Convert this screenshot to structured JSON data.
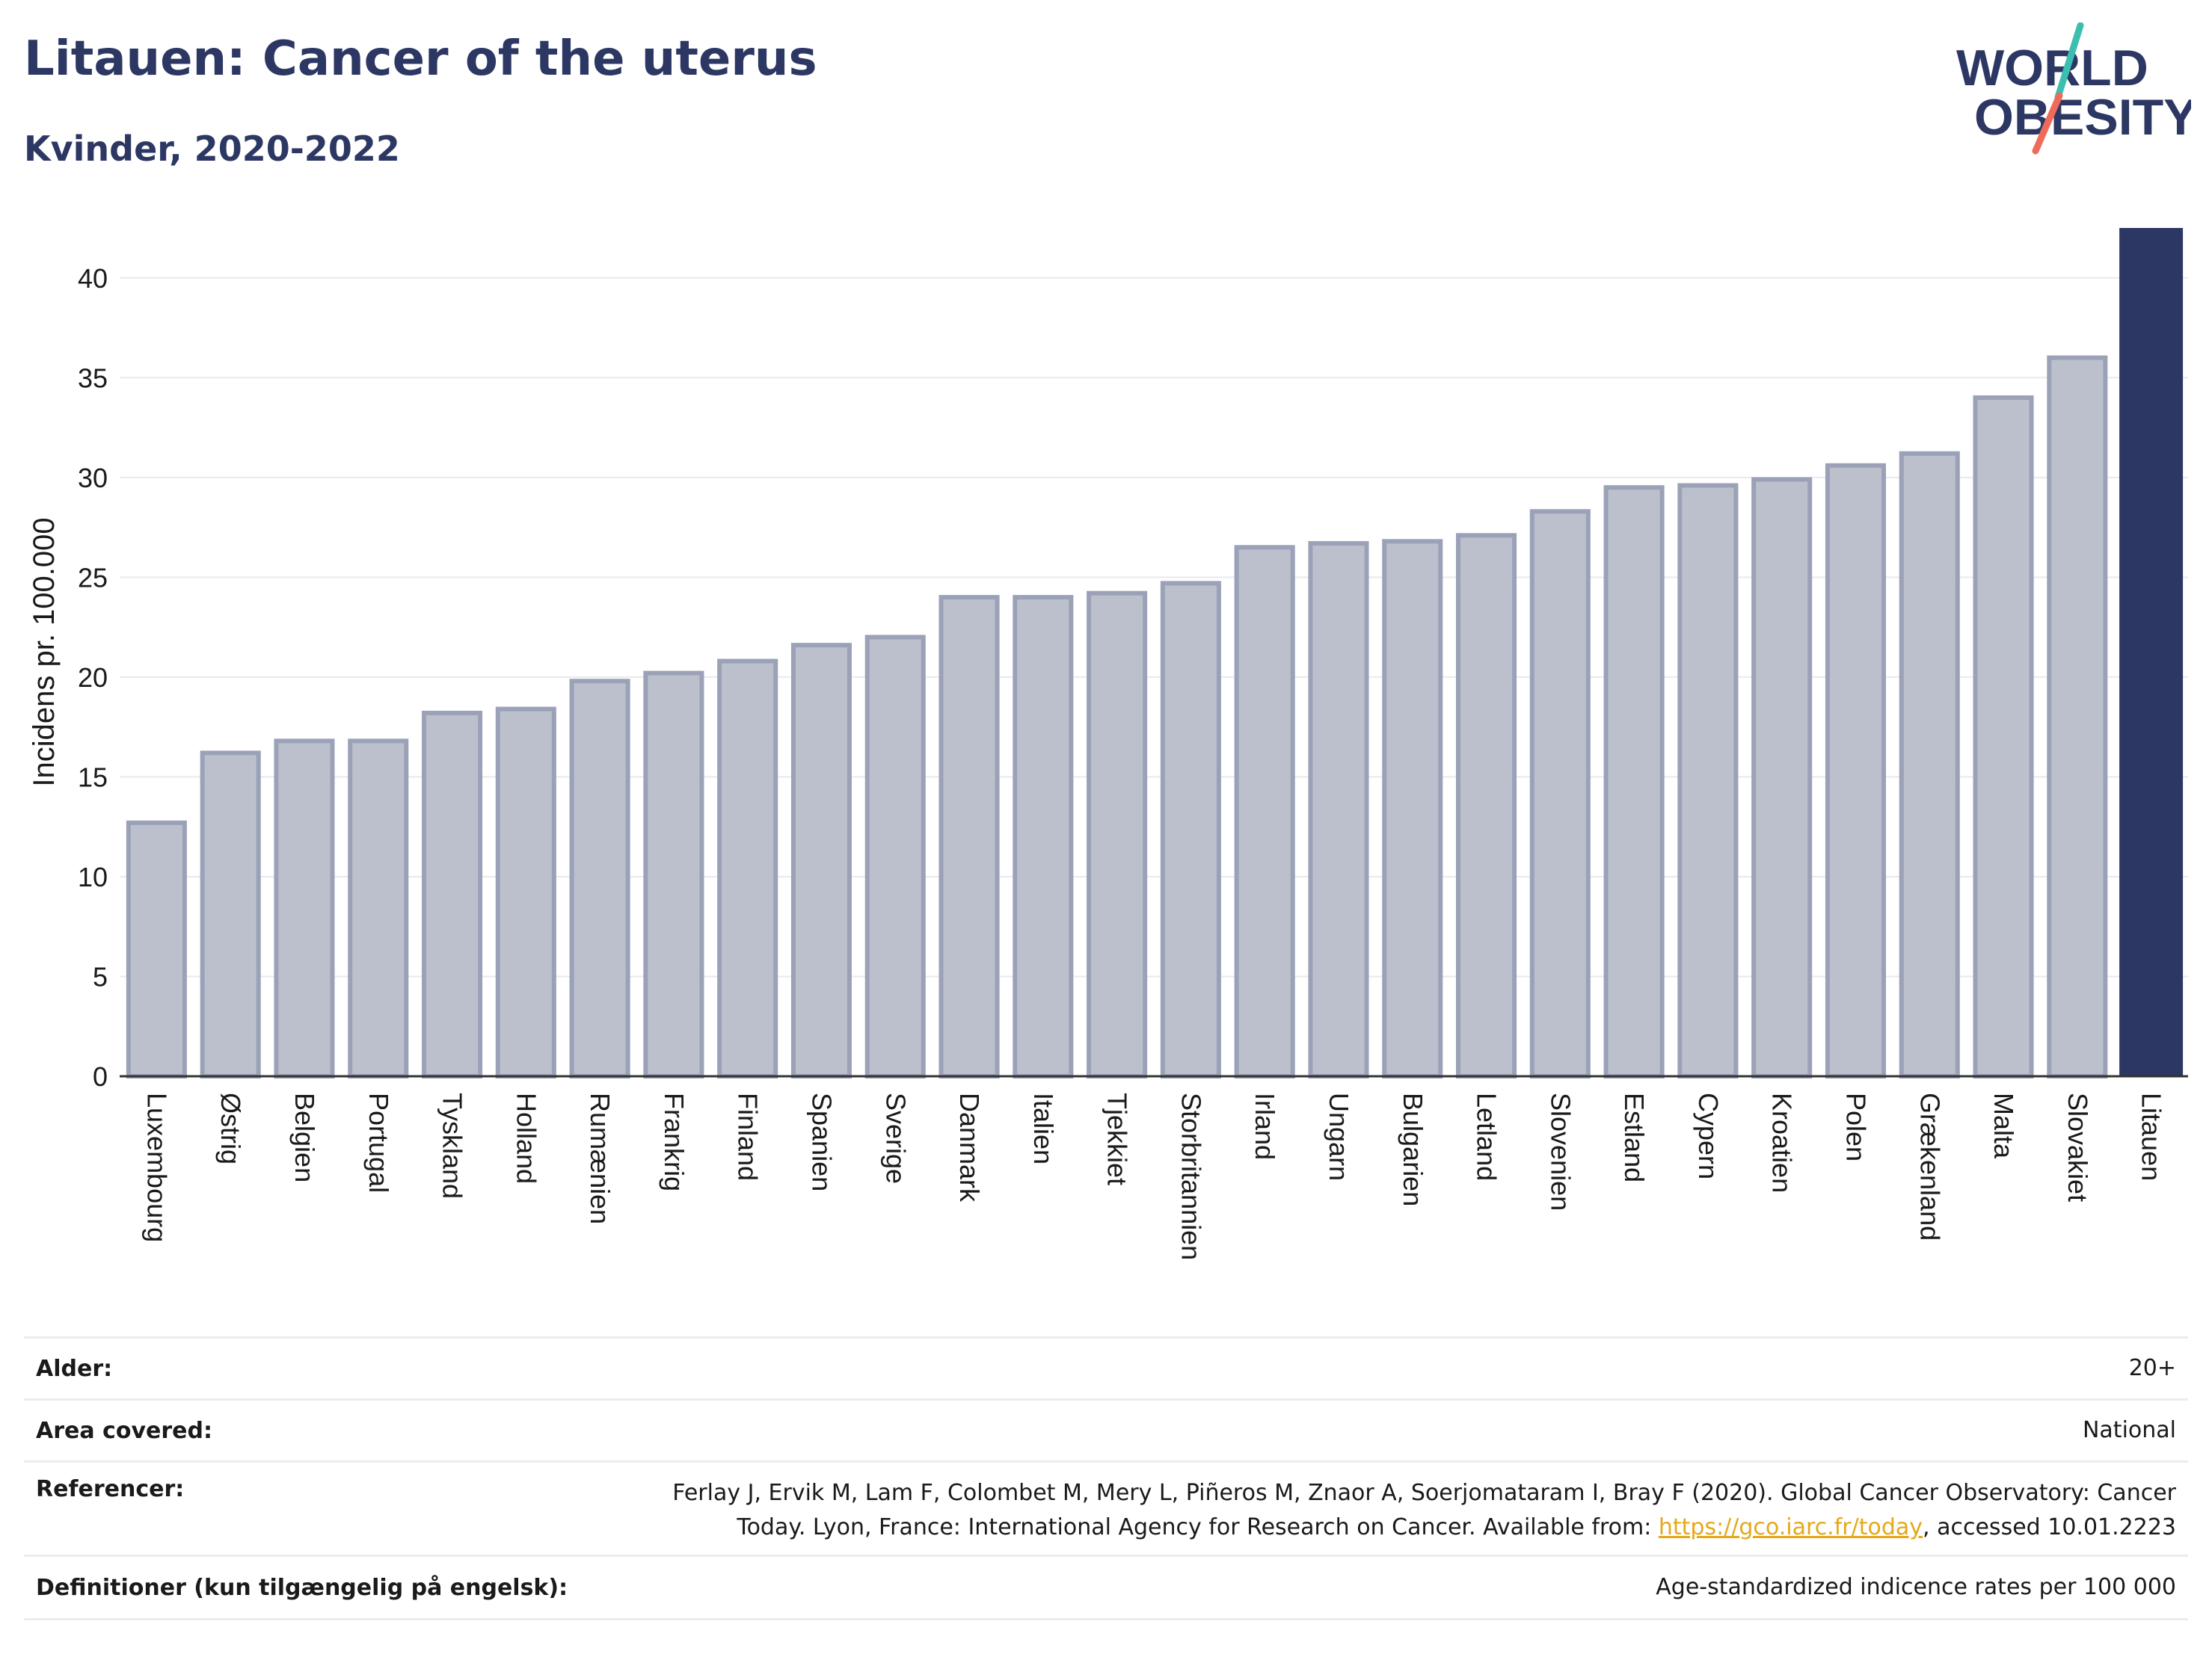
{
  "header": {
    "title": "Litauen: Cancer of the uterus",
    "subtitle": "Kvinder, 2020-2022"
  },
  "logo": {
    "line1": "WORLD",
    "line2": "OBESITY"
  },
  "colors": {
    "highlight": "#2c3763",
    "bar_fill": "#bcc0cc",
    "bar_stroke": "#9ba2b8",
    "text": "#2c3763",
    "link": "#e6a817",
    "logo_teal": "#3bbfb0",
    "logo_coral": "#ee6b5a"
  },
  "chart_data": {
    "type": "bar",
    "ylabel": "Incidens pr. 100.000",
    "ylim": [
      0,
      42.5
    ],
    "yticks": [
      0,
      5,
      10,
      15,
      20,
      25,
      30,
      35,
      40
    ],
    "grid": true,
    "highlight_category": "Litauen",
    "categories": [
      "Luxembourg",
      "Østrig",
      "Belgien",
      "Portugal",
      "Tyskland",
      "Holland",
      "Rumænien",
      "Frankrig",
      "Finland",
      "Spanien",
      "Sverige",
      "Danmark",
      "Italien",
      "Tjekkiet",
      "Storbritannien",
      "Irland",
      "Ungarn",
      "Bulgarien",
      "Letland",
      "Slovenien",
      "Estland",
      "Cypern",
      "Kroatien",
      "Polen",
      "Grækenland",
      "Malta",
      "Slovakiet",
      "Litauen"
    ],
    "values": [
      12.7,
      16.2,
      16.8,
      16.8,
      18.2,
      18.4,
      19.8,
      20.2,
      20.8,
      21.6,
      22.0,
      24.0,
      24.0,
      24.2,
      24.7,
      26.5,
      26.7,
      26.8,
      27.1,
      28.3,
      29.5,
      29.6,
      29.9,
      30.6,
      31.2,
      34.0,
      36.0,
      42.5
    ]
  },
  "footer": {
    "age_label": "Alder:",
    "age_value": "20+",
    "area_label": "Area covered:",
    "area_value": "National",
    "ref_label": "Referencer:",
    "ref_line1": "Ferlay J, Ervik M, Lam F, Colombet M, Mery L, Piñeros M, Znaor A, Soerjomataram I, Bray F (2020). Global Cancer Observatory: Cancer",
    "ref_line2_pre": "Today. Lyon, France: International Agency for Research on Cancer. Available from: ",
    "ref_link": "https://gco.iarc.fr/today",
    "ref_line2_post": ", accessed 10.01.2223",
    "def_label": "Definitioner (kun tilgængelig på engelsk):",
    "def_value": "Age-standardized indicence rates per 100 000"
  }
}
